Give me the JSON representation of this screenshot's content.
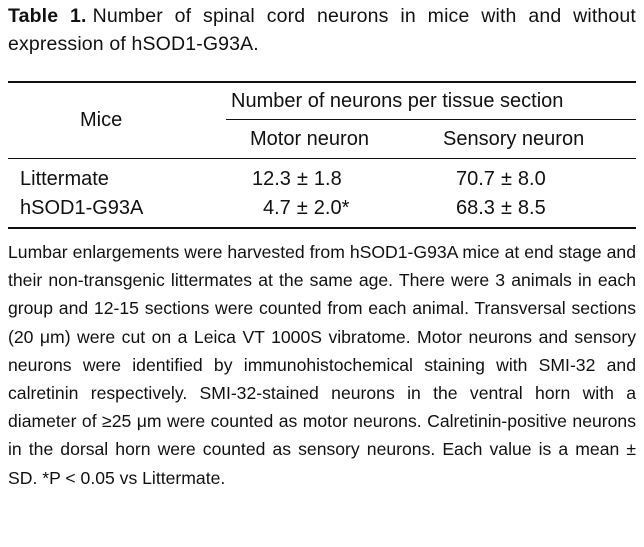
{
  "caption": {
    "label": "Table 1.",
    "text": "Number of spinal cord neurons in mice with and without expression of hSOD1-G93A."
  },
  "table": {
    "col_mice": "Mice",
    "col_group": "Number of neurons per tissue section",
    "col_motor": "Motor neuron",
    "col_sensory": "Sensory neuron",
    "rows": [
      {
        "mice": "Littermate",
        "motor_mean": "12.3",
        "motor_sd": "1.8",
        "sensory_mean": "70.7",
        "sensory_sd": "8.0"
      },
      {
        "mice": "hSOD1-G93A",
        "motor_mean": "4.7",
        "motor_sd": "2.0*",
        "sensory_mean": "68.3",
        "sensory_sd": "8.5"
      }
    ],
    "pm_symbol": "±"
  },
  "notes": "Lumbar enlargements were harvested from hSOD1-G93A mice at end stage and their non-transgenic littermates at the same age. There were 3 animals in each group and 12-15 sections were counted from each animal. Transversal sections (20 μm) were cut on a Leica VT 1000S vibratome. Motor neurons and sensory neurons were identified by immunohistochemical staining with SMI-32 and calretinin respectively. SMI-32-stained neurons in the ventral horn with a diameter of ≥25 μm were counted as motor neurons. Calretinin-positive neurons in the dorsal horn were counted as sensory neurons. Each value is a mean ± SD. *P < 0.05 vs Littermate."
}
